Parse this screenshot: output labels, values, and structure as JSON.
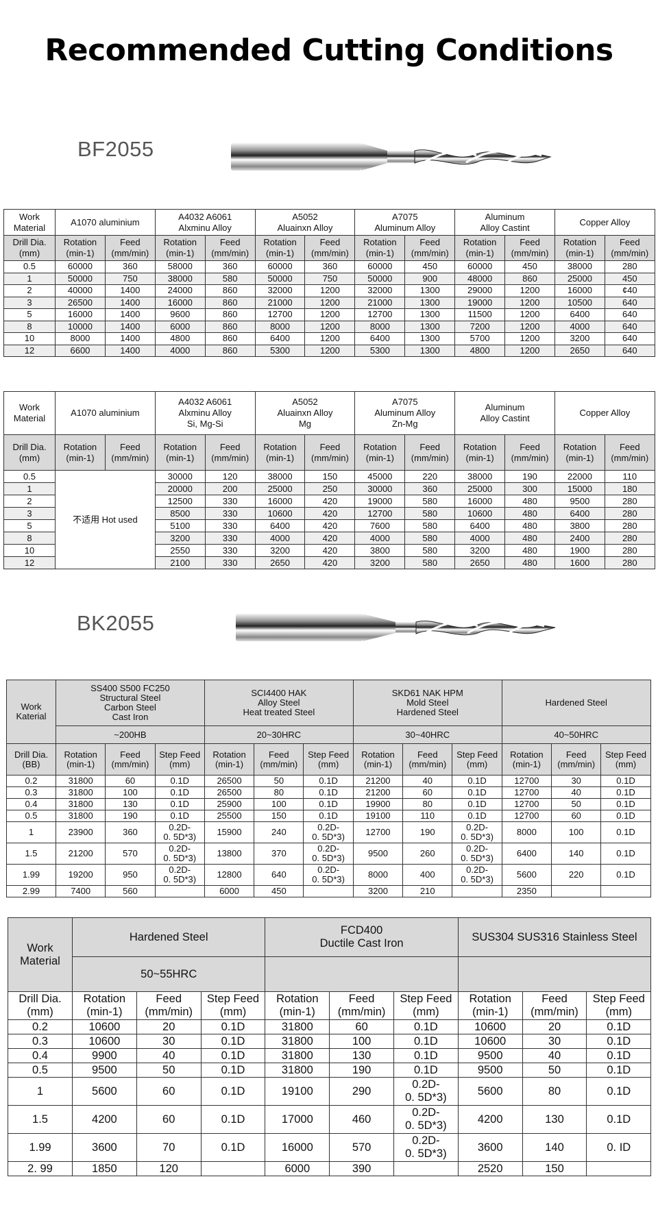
{
  "page_title": "Recommended Cutting Conditions",
  "sections": [
    {
      "model": "BF2055"
    },
    {
      "model": "BK2055"
    }
  ],
  "tables": [
    {
      "header_rows": [
        [
          {
            "text": "Work\nMaterial"
          },
          {
            "text": "A1070 aluminium",
            "colspan": 2
          },
          {
            "text": "A4032 A6061\nAlxminu Alloy",
            "colspan": 2
          },
          {
            "text": "A5052\nAluainxn Alloy",
            "colspan": 2
          },
          {
            "text": "A7075\nAluminum Alloy",
            "colspan": 2
          },
          {
            "text": "Aluminum\nAlloy Castint",
            "colspan": 2
          },
          {
            "text": "Copper Alloy",
            "colspan": 2
          }
        ],
        [
          "Drill Dia.\n(mm)",
          "Rotation\n(min-1)",
          "Feed\n(mm/min)",
          "Rotation\n(min-1)",
          "Feed\n(mm/min)",
          "Rotation\n(min-1)",
          "Feed\n(mm/min)",
          "Rotation\n(min-1)",
          "Feed\n(mm/min)",
          "Rotation\n(min-1)",
          "Feed\n(mm/min)",
          "Rotation\n(min-1)",
          "Feed\n(mm/min)"
        ]
      ],
      "rows": [
        [
          "0.5",
          "60000",
          "360",
          "58000",
          "360",
          "60000",
          "360",
          "60000",
          "450",
          "60000",
          "450",
          "38000",
          "280"
        ],
        [
          "1",
          "50000",
          "750",
          "38000",
          "580",
          "50000",
          "750",
          "50000",
          "900",
          "48000",
          "860",
          "25000",
          "450"
        ],
        [
          "2",
          "40000",
          "1400",
          "24000",
          "860",
          "32000",
          "1200",
          "32000",
          "1300",
          "29000",
          "1200",
          "16000",
          "¢40"
        ],
        [
          "3",
          "26500",
          "1400",
          "16000",
          "860",
          "21000",
          "1200",
          "21000",
          "1300",
          "19000",
          "1200",
          "10500",
          "640"
        ],
        [
          "5",
          "16000",
          "1400",
          "9600",
          "860",
          "12700",
          "1200",
          "12700",
          "1300",
          "11500",
          "1200",
          "6400",
          "640"
        ],
        [
          "8",
          "10000",
          "1400",
          "6000",
          "860",
          "8000",
          "1200",
          "8000",
          "1300",
          "7200",
          "1200",
          "4000",
          "640"
        ],
        [
          "10",
          "8000",
          "1400",
          "4800",
          "860",
          "6400",
          "1200",
          "6400",
          "1300",
          "5700",
          "1200",
          "3200",
          "640"
        ],
        [
          "12",
          "6600",
          "1400",
          "4000",
          "860",
          "5300",
          "1200",
          "5300",
          "1300",
          "4800",
          "1200",
          "2650",
          "640"
        ]
      ]
    },
    {
      "header_rows": [
        [
          {
            "text": "Work\nMaterial"
          },
          {
            "text": "A1070 aluminium",
            "colspan": 2
          },
          {
            "text": "A4032 A6061\nAlxminu Alloy\nSi, Mg-Si",
            "colspan": 2
          },
          {
            "text": "A5052\nAluainxn Alloy\nMg",
            "colspan": 2
          },
          {
            "text": "A7075\nAluminum Alloy\nZn-Mg",
            "colspan": 2
          },
          {
            "text": "Aluminum\nAlloy Castint",
            "colspan": 2
          },
          {
            "text": "Copper Alloy",
            "colspan": 2
          }
        ],
        [
          "Drill Dia.\n(mm)",
          "Rotation\n(min-1)",
          "Feed\n(mm/min)",
          "Rotation\n(min-1)",
          "Feed\n(mm/min)",
          "Rotation\n(min-1)",
          "Feed\n(mm/min)",
          "Rotation\n(min-1)",
          "Feed\n(mm/min)",
          "Rotation\n(min-1)",
          "Feed\n(mm/min)",
          "Rotation\n(min-1)",
          "Feed\n(mm/min)"
        ]
      ],
      "rows": [
        [
          "0.5",
          {
            "text": "不适用 Hot used",
            "colspan": 2,
            "rowspan": 8
          },
          "30000",
          "120",
          "38000",
          "150",
          "45000",
          "220",
          "38000",
          "190",
          "22000",
          "110"
        ],
        [
          "1",
          "20000",
          "200",
          "25000",
          "250",
          "30000",
          "360",
          "25000",
          "300",
          "15000",
          "180"
        ],
        [
          "2",
          "12500",
          "330",
          "16000",
          "420",
          "19000",
          "580",
          "16000",
          "480",
          "9500",
          "280"
        ],
        [
          "3",
          "8500",
          "330",
          "10600",
          "420",
          "12700",
          "580",
          "10600",
          "480",
          "6400",
          "280"
        ],
        [
          "5",
          "5100",
          "330",
          "6400",
          "420",
          "7600",
          "580",
          "6400",
          "480",
          "3800",
          "280"
        ],
        [
          "8",
          "3200",
          "330",
          "4000",
          "420",
          "4000",
          "580",
          "4000",
          "480",
          "2400",
          "280"
        ],
        [
          "10",
          "2550",
          "330",
          "3200",
          "420",
          "3800",
          "580",
          "3200",
          "480",
          "1900",
          "280"
        ],
        [
          "12",
          "2100",
          "330",
          "2650",
          "420",
          "3200",
          "580",
          "2650",
          "480",
          "1600",
          "280"
        ]
      ]
    },
    {
      "header_rows": [
        [
          {
            "text": "Work\nKaterial",
            "rowspan": 2
          },
          {
            "text": "SS400 S500 FC250\nStructural Steel\nCarbon Steel\nCast Iron",
            "colspan": 3
          },
          {
            "text": "SCI4400 HAK\nAlloy Steel\nHeat treated Steel",
            "colspan": 3
          },
          {
            "text": "SKD61 NAK HPM\nMold Steel\nHardened Steel",
            "colspan": 3
          },
          {
            "text": "Hardened Steel",
            "colspan": 3
          }
        ],
        [
          {
            "text": "~200HB",
            "colspan": 3
          },
          {
            "text": "20~30HRC",
            "colspan": 3
          },
          {
            "text": "30~40HRC",
            "colspan": 3
          },
          {
            "text": "40~50HRC",
            "colspan": 3
          }
        ],
        [
          "Drill Dia.\n(BB)",
          "Rotation\n(min-1)",
          "Feed\n(mm/min)",
          "Step Feed\n(mm)",
          "Rotation\n(min-1)",
          "Feed\n(mm/min)",
          "Step Feed\n(mm)",
          "Rotation\n(min-1)",
          "Feed\n(mm/min)",
          "Step Feed\n(mm)",
          "Rotation\n(min-1)",
          "Feed\n(mm/min)",
          "Step Feed\n(mm)"
        ]
      ],
      "rows": [
        [
          "0.2",
          "31800",
          "60",
          "0.1D",
          "26500",
          "50",
          "0.1D",
          "21200",
          "40",
          "0.1D",
          "12700",
          "30",
          "0.1D"
        ],
        [
          "0.3",
          "31800",
          "100",
          "0.1D",
          "26500",
          "80",
          "0.1D",
          "21200",
          "60",
          "0.1D",
          "12700",
          "40",
          "0.1D"
        ],
        [
          "0.4",
          "31800",
          "130",
          "0.1D",
          "25900",
          "100",
          "0.1D",
          "19900",
          "80",
          "0.1D",
          "12700",
          "50",
          "0.1D"
        ],
        [
          "0.5",
          "31800",
          "190",
          "0.1D",
          "25500",
          "150",
          "0.1D",
          "19100",
          "110",
          "0.1D",
          "12700",
          "60",
          "0.1D"
        ],
        [
          "1",
          "23900",
          "360",
          "0.2D-\n0. 5D*3)",
          "15900",
          "240",
          "0.2D-\n0. 5D*3)",
          "12700",
          "190",
          "0.2D-\n0. 5D*3)",
          "8000",
          "100",
          "0.1D"
        ],
        [
          "1.5",
          "21200",
          "570",
          "0.2D-\n0. 5D*3)",
          "13800",
          "370",
          "0.2D-\n0. 5D*3)",
          "9500",
          "260",
          "0.2D-\n0. 5D*3)",
          "6400",
          "140",
          "0.1D"
        ],
        [
          "1.99",
          "19200",
          "950",
          "0.2D-\n0. 5D*3)",
          "12800",
          "640",
          "0.2D-\n0. 5D*3)",
          "8000",
          "400",
          "0.2D-\n0. 5D*3)",
          "5600",
          "220",
          "0.1D"
        ],
        [
          "2.99",
          "7400",
          "560",
          "",
          "6000",
          "450",
          "",
          "3200",
          "210",
          "",
          "2350",
          "",
          ""
        ]
      ]
    },
    {
      "header_rows": [
        [
          {
            "text": "Work\nMaterial",
            "rowspan": 2
          },
          {
            "text": "Hardened Steel",
            "colspan": 3
          },
          {
            "text": "FCD400\nDuctile Cast Iron",
            "colspan": 3
          },
          {
            "text": "SUS304 SUS316    Stainless Steel",
            "colspan": 3
          }
        ],
        [
          {
            "text": "50~55HRC",
            "colspan": 3
          },
          {
            "text": "",
            "colspan": 3
          },
          {
            "text": "",
            "colspan": 3
          }
        ],
        [
          "Drill Dia.\n(mm)",
          "Rotation\n(min-1)",
          "Feed\n(mm/min)",
          "Step Feed\n(mm)",
          "Rotation\n(min-1)",
          "Feed\n(mm/min)",
          "Step Feed\n(mm)",
          "Rotation\n(min-1)",
          "Feed\n(mm/min)",
          "Step Feed\n(mm)"
        ]
      ],
      "rows": [
        [
          "0.2",
          "10600",
          "20",
          "0.1D",
          "31800",
          "60",
          "0.1D",
          "10600",
          "20",
          "0.1D"
        ],
        [
          "0.3",
          "10600",
          "30",
          "0.1D",
          "31800",
          "100",
          "0.1D",
          "10600",
          "30",
          "0.1D"
        ],
        [
          "0.4",
          "9900",
          "40",
          "0.1D",
          "31800",
          "130",
          "0.1D",
          "9500",
          "40",
          "0.1D"
        ],
        [
          "0.5",
          "9500",
          "50",
          "0.1D",
          "31800",
          "190",
          "0.1D",
          "9500",
          "50",
          "0.1D"
        ],
        [
          "1",
          "5600",
          "60",
          "0.1D",
          "19100",
          "290",
          "0.2D-\n0. 5D*3)",
          "5600",
          "80",
          "0.1D"
        ],
        [
          "1.5",
          "4200",
          "60",
          "0.1D",
          "17000",
          "460",
          "0.2D-\n0. 5D*3)",
          "4200",
          "130",
          "0.1D"
        ],
        [
          "1.99",
          "3600",
          "70",
          "0.1D",
          "16000",
          "570",
          "0.2D-\n0. 5D*3)",
          "3600",
          "140",
          "0. ID"
        ],
        [
          "2. 99",
          "1850",
          "120",
          "",
          "6000",
          "390",
          "",
          "2520",
          "150",
          ""
        ]
      ]
    }
  ]
}
